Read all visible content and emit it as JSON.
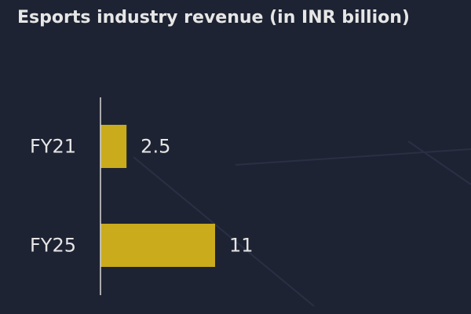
{
  "chart_data": {
    "type": "bar",
    "orientation": "horizontal",
    "title": "Esports industry revenue (in INR billion)",
    "categories": [
      "FY21",
      "FY25"
    ],
    "values": [
      2.5,
      11
    ],
    "value_labels": [
      "2.5",
      "11"
    ],
    "xlabel": "",
    "ylabel": "",
    "xlim": [
      0,
      11
    ],
    "grid": false,
    "legend": "none"
  },
  "colors": {
    "background": "#1e2333",
    "bar": "#c9ab1c",
    "text": "#e6e6e6",
    "axis": "#d8d8d8",
    "watermark": "#2a3044"
  }
}
